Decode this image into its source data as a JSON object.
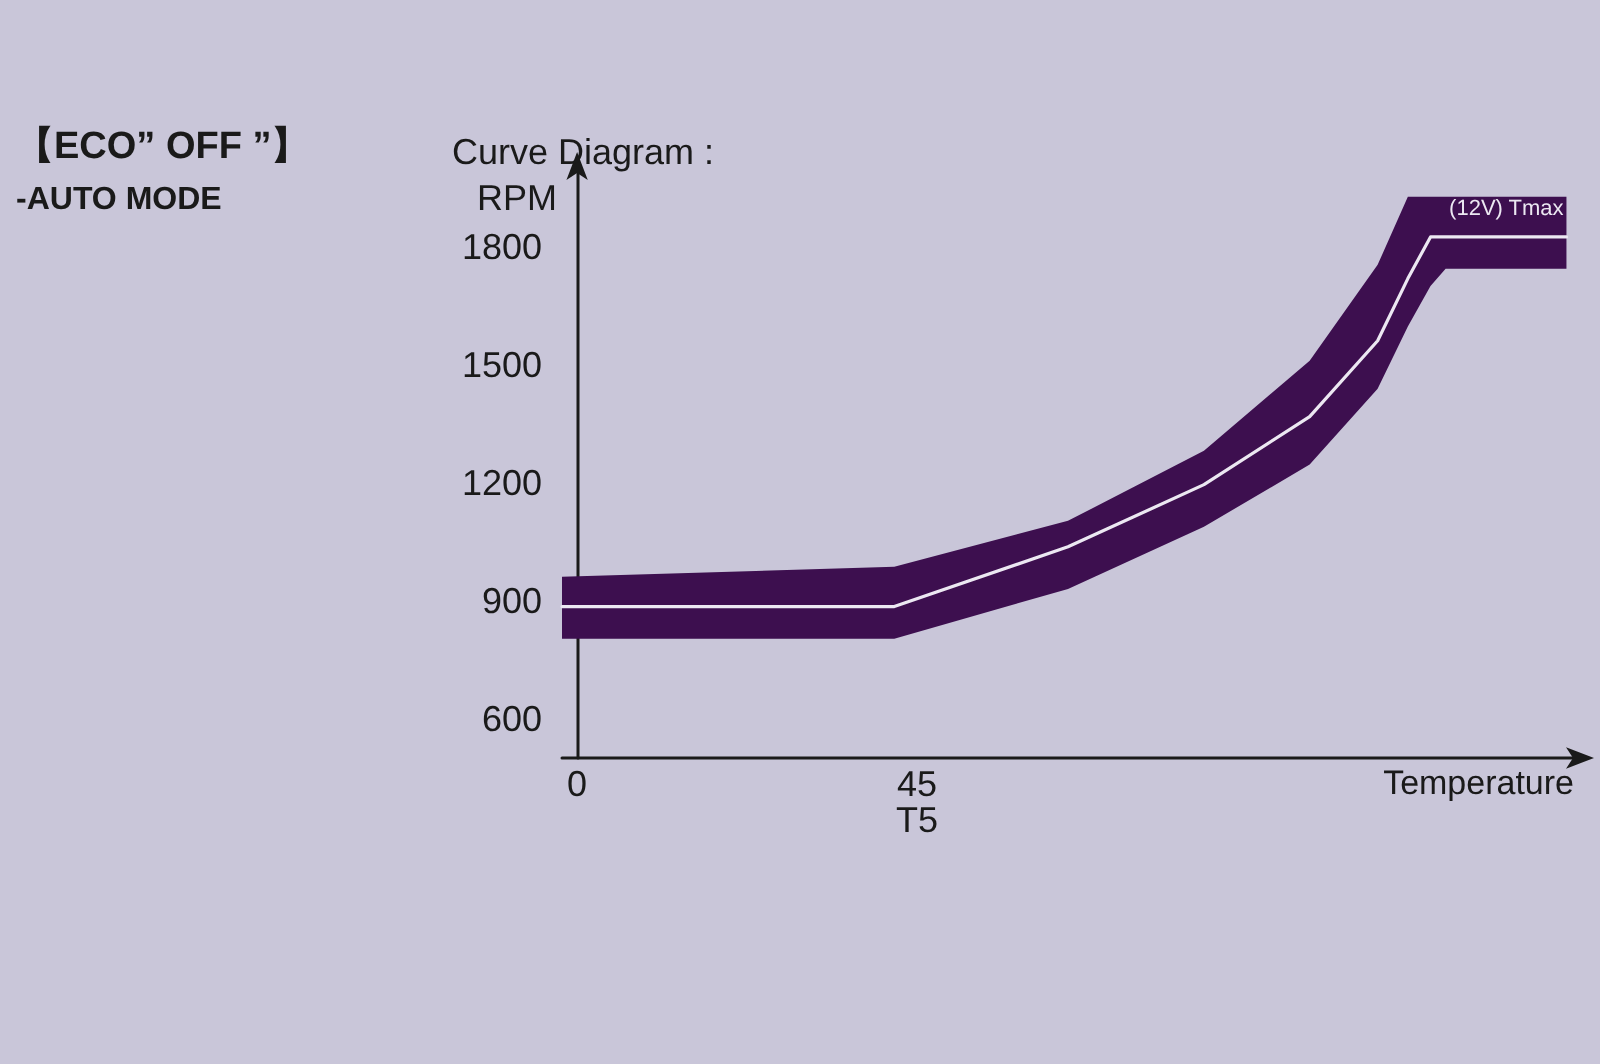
{
  "chart_data": {
    "type": "line",
    "title": "Curve Diagram :",
    "xlabel": "Temperature",
    "ylabel": "RPM",
    "annotations": [
      "【ECO” OFF ”】",
      "-AUTO MODE",
      "(12V) Tmax",
      "T5"
    ],
    "x": [
      -2,
      42,
      65,
      83,
      97,
      106,
      110,
      113,
      115,
      131
    ],
    "series": [
      {
        "color": "#ece8f2",
        "values": [
          885,
          885,
          1037,
          1195,
          1368,
          1561,
          1719,
          1825,
          1825,
          1825
        ],
        "lower": [
          803,
          803,
          930,
          1088,
          1246,
          1439,
          1597,
          1700,
          1744,
          1744
        ],
        "upper": [
          961,
          986,
          1103,
          1281,
          1510,
          1754,
          1927,
          1927,
          1927,
          1927
        ]
      }
    ],
    "xlim": [
      -2,
      132
    ],
    "ylim": [
      500,
      1990
    ],
    "xticks": [
      0,
      45
    ],
    "yticks": [
      600,
      900,
      1200,
      1500,
      1800
    ],
    "grid": false,
    "marker": "none",
    "line_style": "solid"
  }
}
